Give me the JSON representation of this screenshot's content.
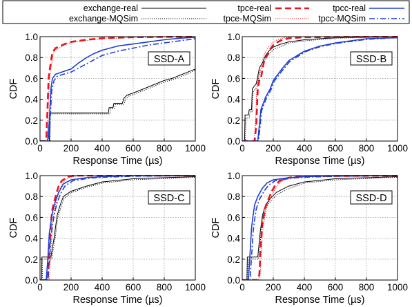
{
  "legend": {
    "placement": "top",
    "entries": [
      {
        "label": "exchange-real",
        "color": "#000000",
        "dash": "solid",
        "width": "thin"
      },
      {
        "label": "exchange-MQSim",
        "color": "#000000",
        "dash": "dotted",
        "width": "thin"
      },
      {
        "label": "tpce-real",
        "color": "#e8141c",
        "dash": "longdash",
        "width": "thick"
      },
      {
        "label": "tpce-MQSim",
        "color": "#e8141c",
        "dash": "dotted",
        "width": "thin"
      },
      {
        "label": "tpcc-real",
        "color": "#1f3fd6",
        "dash": "solid",
        "width": "medium"
      },
      {
        "label": "tpcc-MQSim",
        "color": "#1f3fd6",
        "dash": "dashdot",
        "width": "medium"
      }
    ]
  },
  "chart_data": [
    {
      "type": "line",
      "panel_label": "SSD-A",
      "xlabel": "Response Time (µs)",
      "ylabel": "CDF",
      "xlim": [
        0,
        1000
      ],
      "ylim": [
        0,
        1
      ],
      "xticks": [
        "0",
        "200",
        "400",
        "600",
        "800",
        "1000"
      ],
      "yticks": [
        "0.0",
        "0.2",
        "0.4",
        "0.6",
        "0.8",
        "1.0"
      ],
      "grid": true,
      "series": [
        {
          "name": "exchange-real",
          "x": [
            0,
            60,
            62,
            440,
            445,
            470,
            475,
            530,
            540,
            560,
            600,
            650,
            700,
            750,
            800,
            850,
            900,
            950,
            1000
          ],
          "y": [
            0,
            0,
            0.27,
            0.27,
            0.32,
            0.32,
            0.36,
            0.36,
            0.41,
            0.44,
            0.46,
            0.49,
            0.52,
            0.55,
            0.58,
            0.6,
            0.63,
            0.66,
            0.69
          ]
        },
        {
          "name": "exchange-MQSim",
          "x": [
            0,
            65,
            67,
            450,
            455,
            480,
            485,
            540,
            550,
            570,
            610,
            660,
            710,
            760,
            810,
            860,
            910,
            960,
            1000
          ],
          "y": [
            0,
            0,
            0.26,
            0.26,
            0.31,
            0.31,
            0.35,
            0.35,
            0.4,
            0.43,
            0.45,
            0.48,
            0.51,
            0.54,
            0.57,
            0.59,
            0.62,
            0.65,
            0.68
          ]
        },
        {
          "name": "tpce-real",
          "x": [
            0,
            40,
            48,
            55,
            62,
            70,
            80,
            100,
            130,
            160,
            200,
            300,
            400,
            600,
            1000
          ],
          "y": [
            0,
            0,
            0.3,
            0.6,
            0.68,
            0.76,
            0.85,
            0.89,
            0.91,
            0.93,
            0.95,
            0.97,
            0.985,
            0.995,
            1.0
          ]
        },
        {
          "name": "tpce-MQSim",
          "x": [
            0,
            45,
            52,
            60,
            67,
            75,
            85,
            105,
            135,
            165,
            205,
            305,
            405,
            605,
            1000
          ],
          "y": [
            0,
            0,
            0.28,
            0.57,
            0.66,
            0.74,
            0.84,
            0.88,
            0.9,
            0.925,
            0.945,
            0.965,
            0.98,
            0.992,
            1.0
          ]
        },
        {
          "name": "tpcc-real",
          "x": [
            0,
            50,
            60,
            70,
            80,
            100,
            140,
            200,
            250,
            300,
            350,
            400,
            500,
            600,
            700,
            800,
            900,
            1000
          ],
          "y": [
            0,
            0,
            0.2,
            0.5,
            0.6,
            0.64,
            0.66,
            0.69,
            0.75,
            0.8,
            0.84,
            0.87,
            0.91,
            0.93,
            0.95,
            0.97,
            0.985,
            0.995
          ]
        },
        {
          "name": "tpcc-MQSim",
          "x": [
            0,
            55,
            65,
            75,
            90,
            110,
            150,
            200,
            250,
            300,
            350,
            400,
            500,
            600,
            700,
            800,
            900,
            1000
          ],
          "y": [
            0,
            0,
            0.2,
            0.48,
            0.58,
            0.62,
            0.64,
            0.66,
            0.7,
            0.74,
            0.78,
            0.82,
            0.86,
            0.89,
            0.92,
            0.94,
            0.96,
            0.98
          ]
        }
      ]
    },
    {
      "type": "line",
      "panel_label": "SSD-B",
      "xlabel": "Response Time (µs)",
      "ylabel": "CDF",
      "xlim": [
        0,
        1000
      ],
      "ylim": [
        0,
        1
      ],
      "xticks": [
        "0",
        "200",
        "400",
        "600",
        "800",
        "1000"
      ],
      "yticks": [
        "0.0",
        "0.2",
        "0.4",
        "0.6",
        "0.8",
        "1.0"
      ],
      "grid": true,
      "series": [
        {
          "name": "exchange-real",
          "x": [
            0,
            15,
            18,
            40,
            45,
            60,
            65,
            90,
            100,
            110,
            130,
            150,
            170,
            200,
            250,
            300,
            400,
            600,
            1000
          ],
          "y": [
            0,
            0,
            0.25,
            0.25,
            0.3,
            0.3,
            0.5,
            0.55,
            0.62,
            0.7,
            0.75,
            0.82,
            0.86,
            0.9,
            0.93,
            0.95,
            0.97,
            0.99,
            1.0
          ]
        },
        {
          "name": "exchange-MQSim",
          "x": [
            0,
            20,
            23,
            45,
            50,
            65,
            70,
            95,
            105,
            115,
            135,
            155,
            175,
            205,
            255,
            305,
            405,
            605,
            1000
          ],
          "y": [
            0,
            0,
            0.22,
            0.22,
            0.28,
            0.28,
            0.47,
            0.52,
            0.6,
            0.68,
            0.73,
            0.8,
            0.84,
            0.88,
            0.91,
            0.94,
            0.96,
            0.985,
            1.0
          ]
        },
        {
          "name": "tpce-real",
          "x": [
            0,
            80,
            90,
            100,
            110,
            120,
            140,
            160,
            180,
            200,
            230,
            260,
            300,
            400,
            1000
          ],
          "y": [
            0,
            0,
            0.15,
            0.5,
            0.58,
            0.6,
            0.76,
            0.82,
            0.88,
            0.92,
            0.95,
            0.97,
            0.985,
            0.995,
            1.0
          ]
        },
        {
          "name": "tpce-MQSim",
          "x": [
            0,
            75,
            85,
            95,
            105,
            115,
            135,
            150,
            170,
            190,
            210,
            240,
            270,
            320,
            1000
          ],
          "y": [
            0,
            0,
            0.15,
            0.55,
            0.62,
            0.65,
            0.8,
            0.86,
            0.9,
            0.93,
            0.96,
            0.975,
            0.99,
            1.0,
            1.0
          ]
        },
        {
          "name": "tpcc-real",
          "x": [
            0,
            100,
            110,
            120,
            150,
            180,
            200,
            250,
            300,
            400,
            500,
            600,
            700,
            800,
            1000
          ],
          "y": [
            0,
            0,
            0.15,
            0.3,
            0.42,
            0.5,
            0.58,
            0.68,
            0.77,
            0.86,
            0.91,
            0.94,
            0.96,
            0.98,
            0.99
          ]
        },
        {
          "name": "tpcc-MQSim",
          "x": [
            0,
            105,
            115,
            125,
            155,
            185,
            205,
            255,
            305,
            405,
            505,
            605,
            705,
            805,
            1000
          ],
          "y": [
            0,
            0,
            0.14,
            0.29,
            0.41,
            0.49,
            0.57,
            0.67,
            0.76,
            0.855,
            0.905,
            0.935,
            0.955,
            0.975,
            0.99
          ]
        }
      ]
    },
    {
      "type": "line",
      "panel_label": "SSD-C",
      "xlabel": "Response Time (µs)",
      "ylabel": "CDF",
      "xlim": [
        0,
        1000
      ],
      "ylim": [
        0,
        1
      ],
      "xticks": [
        "0",
        "200",
        "400",
        "600",
        "800",
        "1000"
      ],
      "yticks": [
        "0.0",
        "0.2",
        "0.4",
        "0.6",
        "0.8",
        "1.0"
      ],
      "grid": true,
      "series": [
        {
          "name": "exchange-real",
          "x": [
            0,
            10,
            12,
            70,
            90,
            110,
            130,
            150,
            200,
            300,
            400,
            600,
            1000
          ],
          "y": [
            0,
            0,
            0.22,
            0.22,
            0.4,
            0.62,
            0.72,
            0.8,
            0.85,
            0.9,
            0.94,
            0.97,
            0.99
          ]
        },
        {
          "name": "exchange-MQSim",
          "x": [
            0,
            14,
            16,
            75,
            95,
            115,
            135,
            155,
            205,
            305,
            405,
            605,
            1000
          ],
          "y": [
            0,
            0,
            0.2,
            0.2,
            0.38,
            0.6,
            0.7,
            0.78,
            0.84,
            0.89,
            0.93,
            0.96,
            0.985
          ]
        },
        {
          "name": "tpce-real",
          "x": [
            0,
            50,
            60,
            70,
            80,
            100,
            120,
            140,
            160,
            180,
            220,
            300,
            1000
          ],
          "y": [
            0,
            0,
            0.3,
            0.55,
            0.68,
            0.8,
            0.9,
            0.95,
            0.97,
            0.99,
            1.0,
            1.0,
            1.0
          ]
        },
        {
          "name": "tpce-MQSim",
          "x": [
            0,
            60,
            70,
            80,
            90,
            110,
            130,
            150,
            170,
            190,
            230,
            310,
            1000
          ],
          "y": [
            0,
            0,
            0.28,
            0.52,
            0.66,
            0.78,
            0.88,
            0.94,
            0.965,
            0.985,
            0.995,
            1.0,
            1.0
          ]
        },
        {
          "name": "tpcc-real",
          "x": [
            0,
            40,
            50,
            60,
            80,
            100,
            120,
            150,
            200,
            300,
            400,
            600,
            1000
          ],
          "y": [
            0,
            0,
            0.2,
            0.45,
            0.65,
            0.76,
            0.84,
            0.92,
            0.96,
            0.98,
            0.99,
            1.0,
            1.0
          ]
        },
        {
          "name": "tpcc-MQSim",
          "x": [
            0,
            50,
            60,
            70,
            90,
            110,
            130,
            160,
            210,
            310,
            410,
            610,
            1000
          ],
          "y": [
            0,
            0,
            0.18,
            0.42,
            0.62,
            0.74,
            0.82,
            0.9,
            0.95,
            0.975,
            0.985,
            0.995,
            1.0
          ]
        }
      ]
    },
    {
      "type": "line",
      "panel_label": "SSD-D",
      "xlabel": "Response Time (µs)",
      "ylabel": "CDF",
      "xlim": [
        0,
        1000
      ],
      "ylim": [
        0,
        1
      ],
      "xticks": [
        "0",
        "200",
        "400",
        "600",
        "800",
        "1000"
      ],
      "yticks": [
        "0.0",
        "0.2",
        "0.4",
        "0.6",
        "0.8",
        "1.0"
      ],
      "grid": true,
      "series": [
        {
          "name": "exchange-real",
          "x": [
            0,
            30,
            33,
            100,
            115,
            130,
            150,
            180,
            220,
            300,
            400,
            600,
            1000
          ],
          "y": [
            0,
            0,
            0.22,
            0.22,
            0.45,
            0.62,
            0.72,
            0.78,
            0.84,
            0.9,
            0.94,
            0.97,
            0.99
          ]
        },
        {
          "name": "exchange-MQSim",
          "x": [
            0,
            35,
            38,
            105,
            120,
            135,
            155,
            185,
            225,
            305,
            405,
            605,
            1000
          ],
          "y": [
            0,
            0,
            0.2,
            0.2,
            0.43,
            0.6,
            0.7,
            0.76,
            0.82,
            0.88,
            0.93,
            0.96,
            0.985
          ]
        },
        {
          "name": "tpce-real",
          "x": [
            0,
            100,
            110,
            120,
            130,
            150,
            170,
            190,
            210,
            240,
            300,
            400,
            1000
          ],
          "y": [
            0,
            0,
            0.05,
            0.35,
            0.55,
            0.7,
            0.78,
            0.85,
            0.9,
            0.95,
            0.98,
            0.995,
            1.0
          ]
        },
        {
          "name": "tpce-MQSim",
          "x": [
            0,
            105,
            115,
            125,
            135,
            155,
            175,
            195,
            215,
            245,
            305,
            405,
            1000
          ],
          "y": [
            0,
            0,
            0.05,
            0.33,
            0.52,
            0.68,
            0.76,
            0.83,
            0.88,
            0.94,
            0.975,
            0.99,
            1.0
          ]
        },
        {
          "name": "tpcc-real",
          "x": [
            0,
            40,
            50,
            60,
            70,
            80,
            100,
            130,
            160,
            200,
            300,
            400,
            600,
            1000
          ],
          "y": [
            0,
            0,
            0.25,
            0.5,
            0.62,
            0.72,
            0.8,
            0.88,
            0.93,
            0.96,
            0.98,
            0.99,
            1.0,
            1.0
          ]
        },
        {
          "name": "tpcc-MQSim",
          "x": [
            0,
            50,
            60,
            70,
            80,
            90,
            110,
            140,
            170,
            210,
            310,
            410,
            610,
            1000
          ],
          "y": [
            0,
            0,
            0.22,
            0.46,
            0.58,
            0.68,
            0.77,
            0.85,
            0.91,
            0.95,
            0.975,
            0.985,
            0.995,
            1.0
          ]
        }
      ]
    }
  ]
}
